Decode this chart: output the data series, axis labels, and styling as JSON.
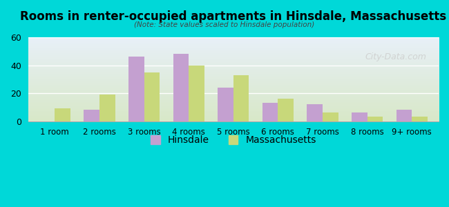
{
  "title": "Rooms in renter-occupied apartments in Hinsdale, Massachusetts",
  "subtitle": "(Note: State values scaled to Hinsdale population)",
  "categories": [
    "1 room",
    "2 rooms",
    "3 rooms",
    "4 rooms",
    "5 rooms",
    "6 rooms",
    "7 rooms",
    "8 rooms",
    "9+ rooms"
  ],
  "hinsdale": [
    0,
    8,
    46,
    48,
    24,
    13,
    12,
    6,
    8
  ],
  "massachusetts": [
    9,
    19,
    35,
    40,
    33,
    16,
    6,
    3,
    3
  ],
  "hinsdale_color": "#c4a0d0",
  "massachusetts_color": "#c8d87a",
  "ylim": [
    0,
    60
  ],
  "yticks": [
    0,
    20,
    40,
    60
  ],
  "background_outer": "#00d8d8",
  "background_inner_top": "#e8f0f8",
  "background_inner_bottom": "#d8e8c8",
  "watermark": "City-Data.com",
  "legend_hinsdale": "Hinsdale",
  "legend_massachusetts": "Massachusetts",
  "bar_width": 0.35
}
